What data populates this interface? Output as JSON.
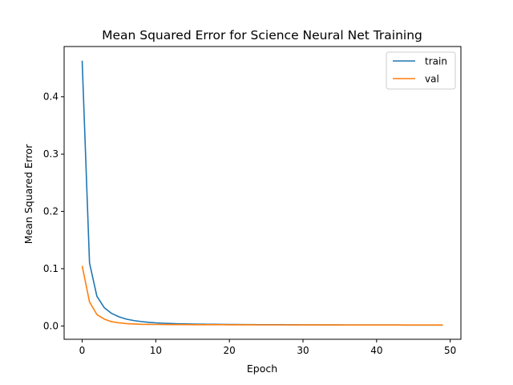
{
  "chart_data": {
    "type": "line",
    "title": "Mean Squared Error for Science Neural Net Training",
    "xlabel": "Epoch",
    "ylabel": "Mean Squared Error",
    "xlim": [
      -2.45,
      51.45
    ],
    "ylim": [
      -0.0232,
      0.4878
    ],
    "xticks": [
      0,
      10,
      20,
      30,
      40,
      50
    ],
    "xtick_labels": [
      "0",
      "10",
      "20",
      "30",
      "40",
      "50"
    ],
    "yticks": [
      0.0,
      0.1,
      0.2,
      0.3,
      0.4
    ],
    "ytick_labels": [
      "0.0",
      "0.1",
      "0.2",
      "0.3",
      "0.4"
    ],
    "grid": false,
    "legend": "top-right",
    "x": [
      0,
      1,
      2,
      3,
      4,
      5,
      6,
      7,
      8,
      9,
      10,
      11,
      12,
      13,
      14,
      15,
      16,
      17,
      18,
      19,
      20,
      21,
      22,
      23,
      24,
      25,
      26,
      27,
      28,
      29,
      30,
      31,
      32,
      33,
      34,
      35,
      36,
      37,
      38,
      39,
      40,
      41,
      42,
      43,
      44,
      45,
      46,
      47,
      48,
      49
    ],
    "series": [
      {
        "name": "train",
        "color": "#1f77b4",
        "values": [
          0.463,
          0.11,
          0.052,
          0.032,
          0.022,
          0.016,
          0.012,
          0.0095,
          0.0078,
          0.0065,
          0.0055,
          0.0048,
          0.0043,
          0.0039,
          0.0036,
          0.0034,
          0.0032,
          0.003,
          0.0029,
          0.0028,
          0.0027,
          0.0026,
          0.0025,
          0.0024,
          0.0023,
          0.0023,
          0.0022,
          0.0022,
          0.0021,
          0.0021,
          0.002,
          0.002,
          0.002,
          0.0019,
          0.0019,
          0.0019,
          0.0018,
          0.0018,
          0.0018,
          0.0018,
          0.0017,
          0.0017,
          0.0017,
          0.0017,
          0.0016,
          0.0016,
          0.0016,
          0.0016,
          0.0016,
          0.0015
        ]
      },
      {
        "name": "val",
        "color": "#ff7f0e",
        "values": [
          0.105,
          0.042,
          0.02,
          0.012,
          0.0075,
          0.0055,
          0.0042,
          0.0035,
          0.003,
          0.0028,
          0.0027,
          0.0026,
          0.0025,
          0.0024,
          0.0024,
          0.0023,
          0.0023,
          0.0022,
          0.0022,
          0.0022,
          0.0021,
          0.0021,
          0.0021,
          0.0021,
          0.002,
          0.002,
          0.002,
          0.002,
          0.002,
          0.0019,
          0.0019,
          0.0019,
          0.0019,
          0.0019,
          0.0019,
          0.0018,
          0.0018,
          0.0018,
          0.0018,
          0.0018,
          0.0018,
          0.0018,
          0.0017,
          0.0017,
          0.0017,
          0.0017,
          0.0017,
          0.0017,
          0.0017,
          0.0017
        ]
      }
    ]
  }
}
